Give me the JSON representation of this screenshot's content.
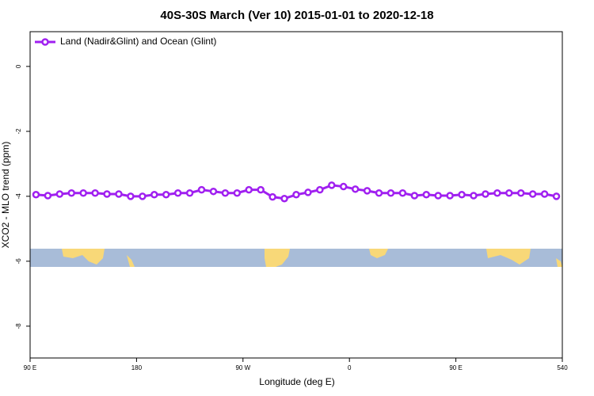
{
  "chart_data": {
    "type": "line",
    "title": "40S-30S March (Ver 10)   2015-01-01 to 2020-12-18",
    "x_label": "Longitude (deg E)",
    "y_label": "XCO2 - MLO trend (ppm)",
    "xlim": [
      90,
      540
    ],
    "ylim": [
      -8.98,
      1.07
    ],
    "xticks": [
      {
        "value": 90,
        "label": "90 E"
      },
      180,
      {
        "value": 270,
        "label": "90 W"
      },
      {
        "value": 360,
        "label": "0"
      },
      {
        "value": 450,
        "label": "90 E"
      },
      540
    ],
    "yticks": [
      0,
      -2,
      -4,
      -6,
      -8
    ],
    "legend": "top-left",
    "x": [
      95,
      105,
      115,
      125,
      135,
      145,
      155,
      165,
      175,
      185,
      195,
      205,
      215,
      225,
      235,
      245,
      255,
      265,
      275,
      285,
      295,
      305,
      315,
      325,
      335,
      345,
      355,
      365,
      375,
      385,
      395,
      405,
      415,
      425,
      435,
      445,
      455,
      465,
      475,
      485,
      495,
      505,
      515,
      525,
      535
    ],
    "series": [
      {
        "name": "Land (Nadir&Glint) and Ocean (Glint)",
        "color": "#a020f0",
        "values": [
          -3.95,
          -3.98,
          -3.93,
          -3.9,
          -3.9,
          -3.9,
          -3.93,
          -3.93,
          -4.0,
          -4.0,
          -3.95,
          -3.95,
          -3.9,
          -3.9,
          -3.8,
          -3.85,
          -3.9,
          -3.9,
          -3.8,
          -3.8,
          -4.02,
          -4.07,
          -3.95,
          -3.88,
          -3.8,
          -3.66,
          -3.7,
          -3.78,
          -3.83,
          -3.9,
          -3.9,
          -3.9,
          -3.98,
          -3.95,
          -3.98,
          -3.98,
          -3.95,
          -3.98,
          -3.93,
          -3.9,
          -3.9,
          -3.9,
          -3.93,
          -3.93,
          -4.0
        ]
      }
    ]
  }
}
